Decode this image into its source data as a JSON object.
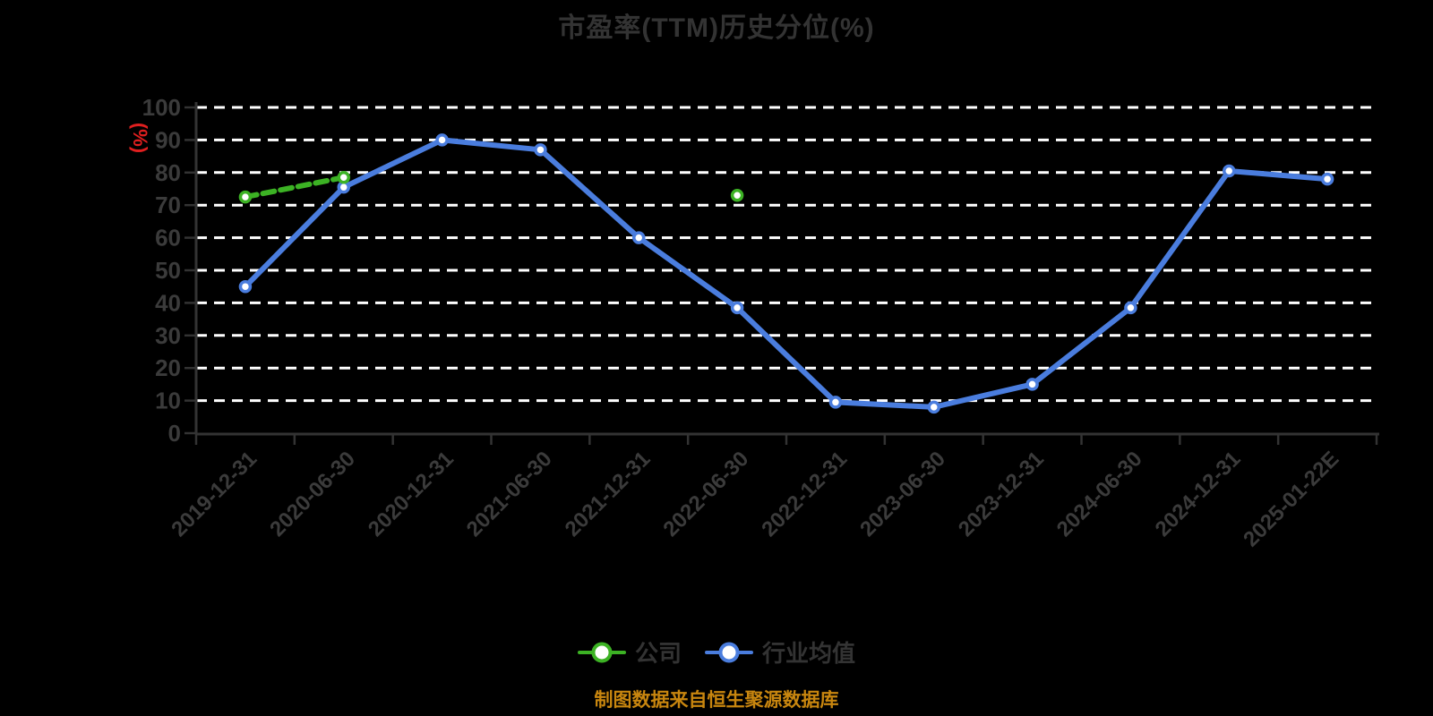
{
  "title": "市盈率(TTM)历史分位(%)",
  "y_unit_label": "(%)",
  "footer_note": "制图数据来自恒生聚源数据库",
  "legend": {
    "items": [
      {
        "key": "company",
        "label": "公司",
        "color": "#3CB224"
      },
      {
        "key": "industry",
        "label": "行业均值",
        "color": "#4A7DDE"
      }
    ]
  },
  "colors": {
    "background": "#000000",
    "title": "#333333",
    "axis": "#333333",
    "axis_label": "#3B3B3B",
    "grid": "#FFFFFF",
    "unit_label": "#E01F1F",
    "footer": "#C8860F",
    "legend_text": "#333333",
    "marker_fill": "#FFFFFF"
  },
  "chart_data": {
    "type": "line",
    "title": "市盈率(TTM)历史分位(%)",
    "xlabel": "",
    "ylabel": "(%)",
    "ylim": [
      0,
      100
    ],
    "y_ticks": [
      0,
      10,
      20,
      30,
      40,
      50,
      60,
      70,
      80,
      90,
      100
    ],
    "grid": "horizontal dashed white lines",
    "legend_position": "bottom",
    "x_label_rotation": 45,
    "categories": [
      "2019-12-31",
      "2020-06-30",
      "2020-12-31",
      "2021-06-30",
      "2021-12-31",
      "2022-06-30",
      "2022-12-31",
      "2023-06-30",
      "2023-12-31",
      "2024-06-30",
      "2024-12-31",
      "2025-01-22E"
    ],
    "series": [
      {
        "key": "company",
        "name": "公司",
        "color": "#3CB224",
        "line_style": "dashed",
        "values": [
          72.5,
          78.5,
          null,
          null,
          null,
          73,
          null,
          null,
          null,
          null,
          null,
          null
        ]
      },
      {
        "key": "industry",
        "name": "行业均值",
        "color": "#4A7DDE",
        "line_style": "solid",
        "values": [
          45,
          75.5,
          90,
          87,
          60,
          38.5,
          9.5,
          8,
          15,
          38.5,
          80.5,
          78
        ]
      }
    ]
  }
}
